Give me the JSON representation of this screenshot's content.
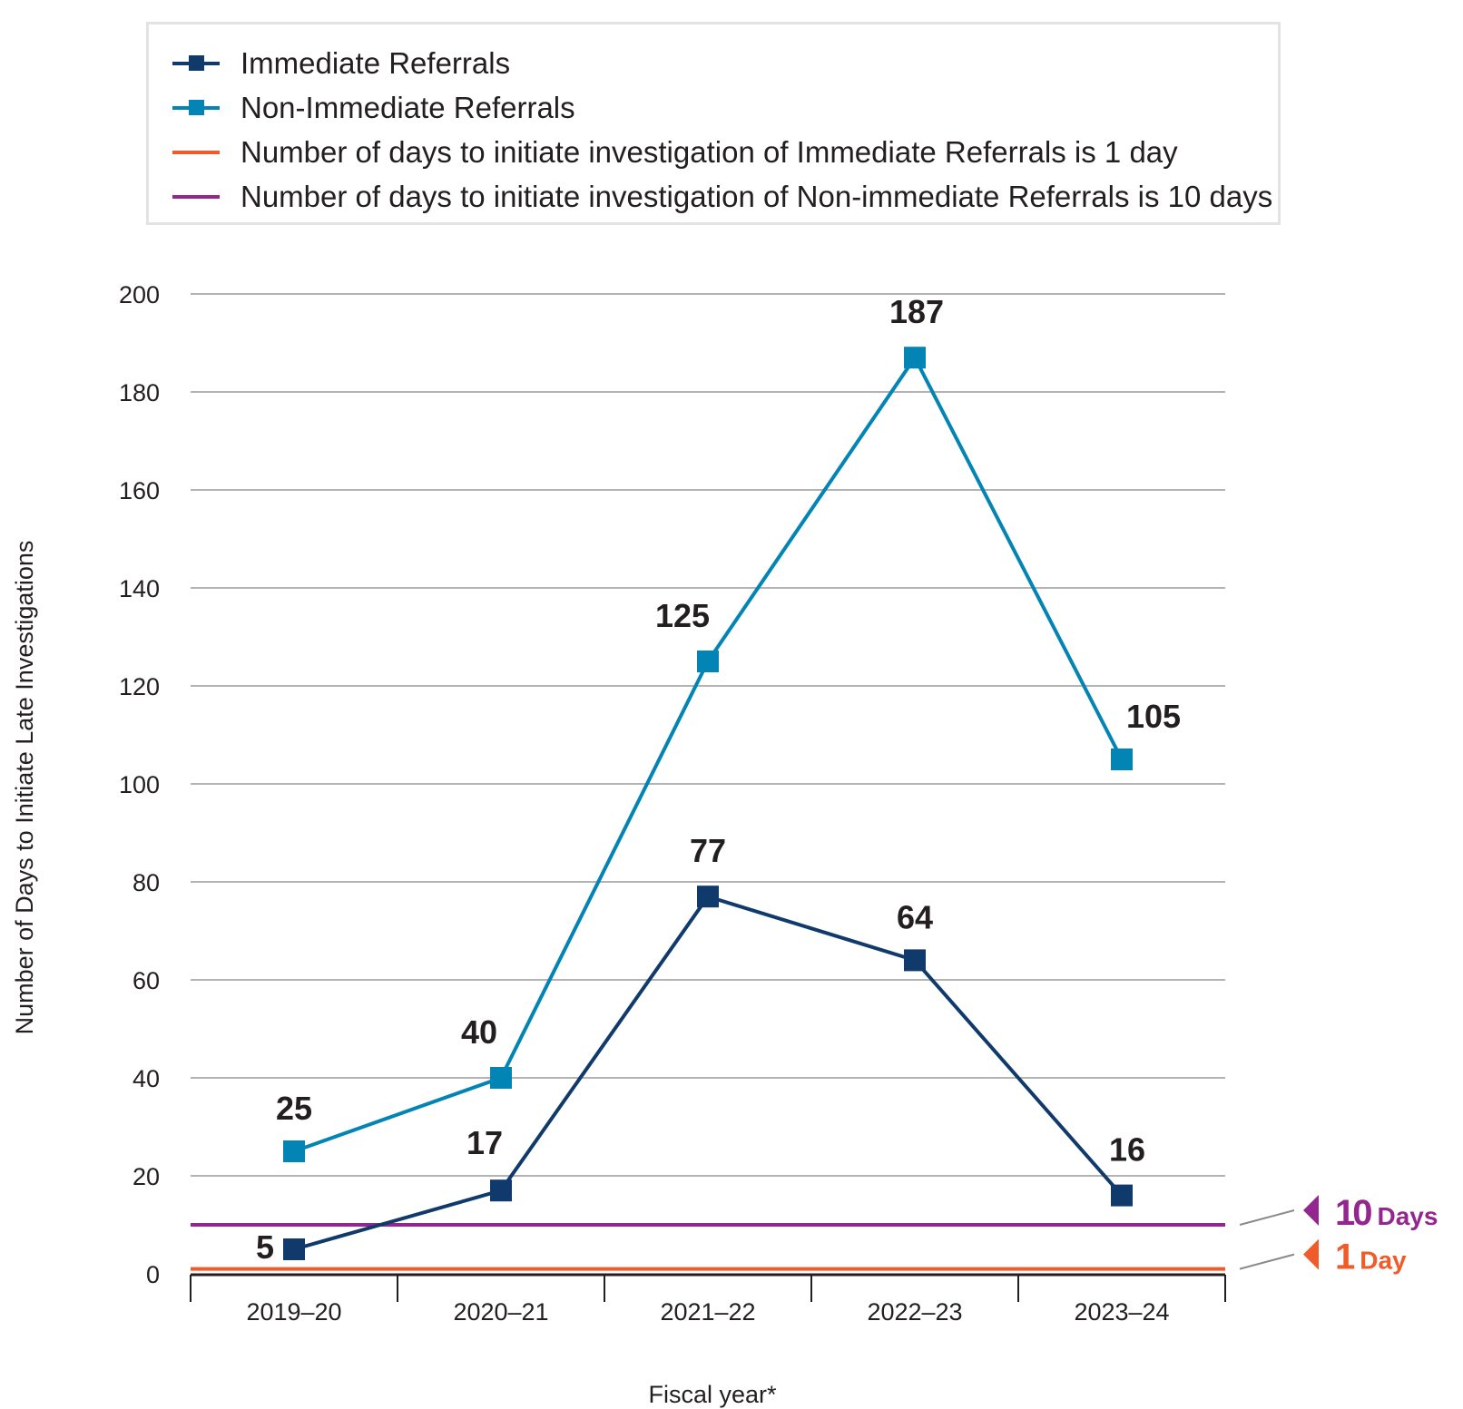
{
  "chart_data": {
    "type": "line",
    "title": "",
    "xlabel": "Fiscal year*",
    "ylabel": "Number of Days to Initiate Late Investigations",
    "categories": [
      "2019–20",
      "2020–21",
      "2021–22",
      "2022–23",
      "2023–24"
    ],
    "ylim": [
      0,
      200
    ],
    "yticks": [
      0,
      20,
      40,
      60,
      80,
      100,
      120,
      140,
      160,
      180,
      200
    ],
    "grid": true,
    "legend_position": "top",
    "series": [
      {
        "name": "Immediate Referrals",
        "values": [
          5,
          17,
          77,
          64,
          16
        ],
        "color": "#103a6b",
        "marker": "square"
      },
      {
        "name": "Non-Immediate Referrals",
        "values": [
          25,
          40,
          125,
          187,
          105
        ],
        "color": "#0284b4",
        "marker": "square"
      }
    ],
    "reference_lines": [
      {
        "name": "Number of days to initiate investigation of Immediate Referrals is 1 day",
        "value": 1,
        "color": "#f15a29",
        "annotation_number": "1",
        "annotation_unit": "Day"
      },
      {
        "name": "Number of days to initiate investigation of Non-immediate Referrals is 10 days",
        "value": 10,
        "color": "#93278f",
        "annotation_number": "10",
        "annotation_unit": "Days"
      }
    ]
  }
}
